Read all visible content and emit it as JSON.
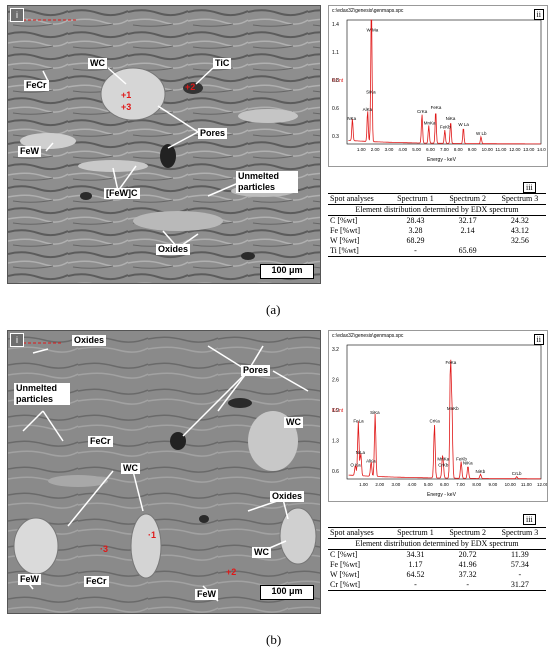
{
  "panel_a": {
    "caption": "(a)",
    "sem": {
      "corner_label": "i",
      "scale_bar": "100 μm",
      "labels": {
        "wc": "WC",
        "tic": "TiC",
        "fecr": "FeCr",
        "pores": "Pores",
        "few": "FeW",
        "fewc": "[FeW]C",
        "unmelted": "Unmelted particles",
        "oxides": "Oxides"
      },
      "spots": {
        "s1": "+1",
        "s3": "+3",
        "s2": "+2"
      }
    },
    "spectrum": {
      "corner_label": "ii",
      "header": "c:\\edax32\\genesis\\genmaps.spc",
      "xlabel": "Energy - keV",
      "y_unit": "KCnt",
      "yticks": [
        "1.4",
        "1.1",
        "0.8",
        "0.6",
        "0.3"
      ],
      "xticks": [
        "1.00",
        "2.00",
        "3.00",
        "4.00",
        "5.00",
        "6.00",
        "7.00",
        "8.00",
        "9.00",
        "10.00",
        "11.00",
        "12.00",
        "13.00",
        "14.0"
      ],
      "peaks": [
        {
          "label": "W Ma",
          "kev": 1.77,
          "height": 1.25
        },
        {
          "label": "SiKa",
          "kev": 1.74,
          "height": 0.55
        },
        {
          "label": "AlKa",
          "kev": 1.49,
          "height": 0.35
        },
        {
          "label": "NKa",
          "kev": 0.39,
          "height": 0.25
        },
        {
          "label": "CrKa",
          "kev": 5.41,
          "height": 0.33
        },
        {
          "label": "FeKa",
          "kev": 6.4,
          "height": 0.37
        },
        {
          "label": "MnKa",
          "kev": 5.9,
          "height": 0.2
        },
        {
          "label": "FeKb",
          "kev": 7.06,
          "height": 0.15
        },
        {
          "label": "NiKa",
          "kev": 7.48,
          "height": 0.25
        },
        {
          "label": "W La",
          "kev": 8.4,
          "height": 0.18
        },
        {
          "label": "W Lb",
          "kev": 9.67,
          "height": 0.08
        }
      ]
    },
    "table": {
      "corner_label": "iii",
      "header": [
        "Spot analyses",
        "Spectrum 1",
        "Spectrum 2",
        "Spectrum 3"
      ],
      "subtitle": "Element distribution determined by EDX spectrum",
      "rows": [
        {
          "element": "C [%wt]",
          "s1": "28.43",
          "s2": "32.17",
          "s3": "24.32"
        },
        {
          "element": "Fe [%wt]",
          "s1": "3.28",
          "s2": "2.14",
          "s3": "43.12"
        },
        {
          "element": "W [%wt]",
          "s1": "68.29",
          "s2": "",
          "s3": "32.56"
        },
        {
          "element": "Ti [%wt]",
          "s1": "-",
          "s2": "65.69",
          "s3": ""
        }
      ]
    }
  },
  "panel_b": {
    "caption": "(b)",
    "sem": {
      "corner_label": "i",
      "scale_bar": "100 μm",
      "labels": {
        "oxides_top": "Oxides",
        "unmelted": "Unmelted particles",
        "pores": "Pores",
        "wc_right": "WC",
        "fecr_mid": "FeCr",
        "wc_mid": "WC",
        "oxides_right": "Oxides",
        "wc_bottom": "WC",
        "few_left": "FeW",
        "fecr_bottom": "FeCr",
        "few_bottom": "FeW"
      },
      "spots": {
        "s1": "·1",
        "s2": "+2",
        "s3": "·3"
      }
    },
    "spectrum": {
      "corner_label": "ii",
      "header": "c:\\edax32\\genesis\\genmaps.spc",
      "xlabel": "Energy - keV",
      "y_unit": "KCnt",
      "yticks": [
        "3.2",
        "2.6",
        "1.9",
        "1.3",
        "0.6"
      ],
      "xticks": [
        "1.00",
        "2.00",
        "3.00",
        "4.00",
        "5.00",
        "6.00",
        "7.00",
        "8.00",
        "9.00",
        "10.00",
        "11.00",
        "12.00"
      ],
      "peaks": [
        {
          "label": "FeLa",
          "kev": 0.7,
          "height": 1.3
        },
        {
          "label": "SiKa",
          "kev": 1.74,
          "height": 1.5
        },
        {
          "label": "AlKa",
          "kev": 1.49,
          "height": 0.35
        },
        {
          "label": "NiLa",
          "kev": 0.85,
          "height": 0.55
        },
        {
          "label": "O Ka",
          "kev": 0.52,
          "height": 0.25
        },
        {
          "label": "CrKa",
          "kev": 5.41,
          "height": 1.3
        },
        {
          "label": "FeKa",
          "kev": 6.4,
          "height": 2.7
        },
        {
          "label": "MnKb",
          "kev": 6.49,
          "height": 1.6
        },
        {
          "label": "MnKa",
          "kev": 5.9,
          "height": 0.4
        },
        {
          "label": "CrKb",
          "kev": 5.95,
          "height": 0.25
        },
        {
          "label": "FeKb",
          "kev": 7.06,
          "height": 0.4
        },
        {
          "label": "NiKa",
          "kev": 7.48,
          "height": 0.3
        },
        {
          "label": "NiKb",
          "kev": 8.26,
          "height": 0.1
        },
        {
          "label": "CrLb",
          "kev": 10.5,
          "height": 0.05
        }
      ]
    },
    "table": {
      "corner_label": "iii",
      "header": [
        "Spot analyses",
        "Spectrum 1",
        "Spectrum 2",
        "Spectrum 3"
      ],
      "subtitle": "Element distribution determined by EDX spectrum",
      "rows": [
        {
          "element": "C [%wt]",
          "s1": "34.31",
          "s2": "20.72",
          "s3": "11.39"
        },
        {
          "element": "Fe [%wt]",
          "s1": "1.17",
          "s2": "41.96",
          "s3": "57.34"
        },
        {
          "element": "W [%wt]",
          "s1": "64.52",
          "s2": "37.32",
          "s3": "-"
        },
        {
          "element": "Cr [%wt]",
          "s1": "-",
          "s2": "-",
          "s3": "31.27"
        }
      ]
    }
  }
}
